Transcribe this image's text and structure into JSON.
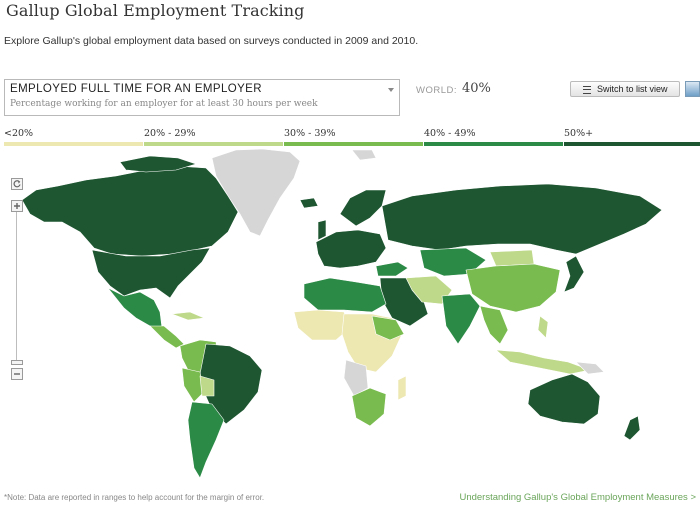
{
  "header": {
    "title": "Gallup Global Employment Tracking",
    "intro": "Explore Gallup's global employment data based on surveys conducted in 2009 and 2010."
  },
  "measure": {
    "title": "EMPLOYED FULL TIME FOR AN EMPLOYER",
    "subtitle": "Percentage working for an employer for at least 30 hours per week"
  },
  "world": {
    "label": "WORLD:",
    "value": "40%"
  },
  "toolbar": {
    "list_view_label": "Switch to list view",
    "list_icon": "list-icon",
    "map_icon": "map-thumbnail-icon"
  },
  "legend": [
    {
      "label": "<20%",
      "color": "#ede7b1"
    },
    {
      "label": "20% - 29%",
      "color": "#bfd98a"
    },
    {
      "label": "30% - 39%",
      "color": "#79bb4e"
    },
    {
      "label": "40% - 49%",
      "color": "#2c8a47"
    },
    {
      "label": "50%+",
      "color": "#1e5631"
    }
  ],
  "no_data_color": "#d6d6d6",
  "zoom": {
    "reset_icon": "reset-icon",
    "zoom_in_icon": "plus-icon",
    "zoom_out_icon": "minus-icon"
  },
  "footer": {
    "note": "*Note: Data are reported in ranges to help account for the margin of error.",
    "link": "Understanding Gallup's Global Employment Measures >"
  }
}
